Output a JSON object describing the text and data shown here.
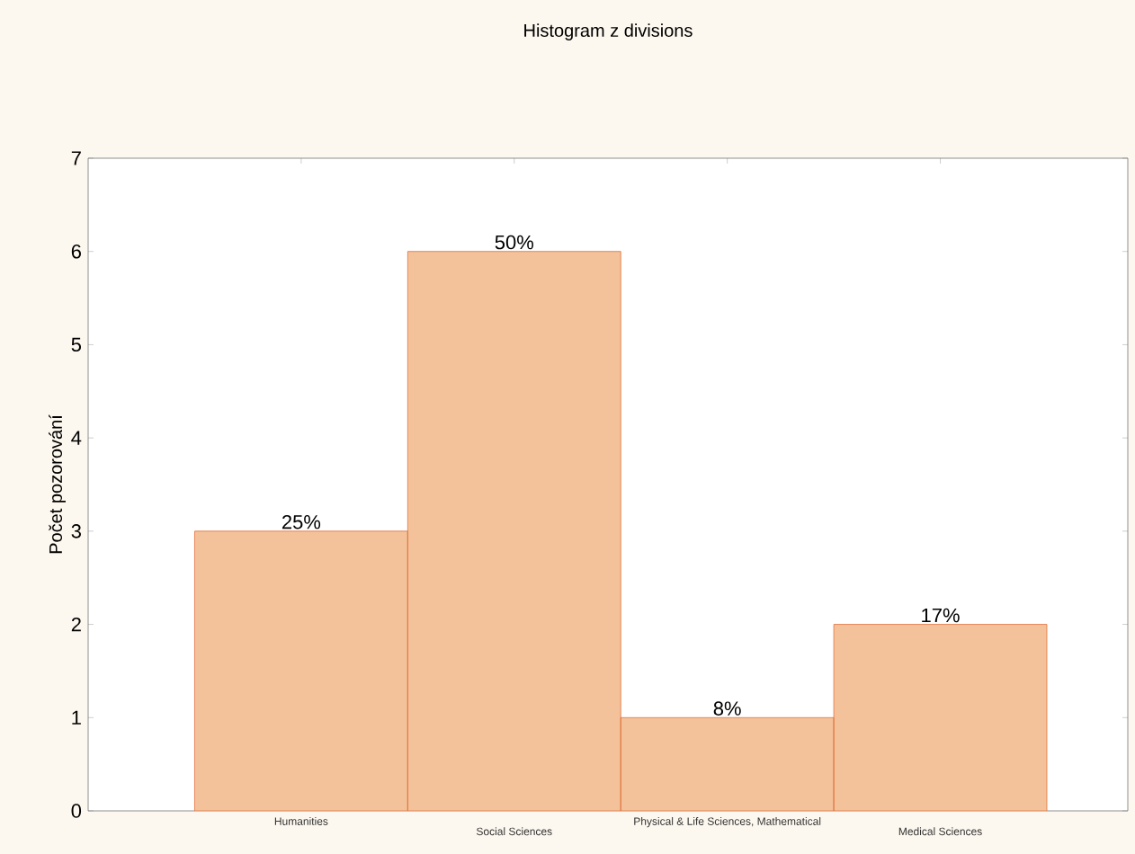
{
  "chart_data": {
    "type": "bar",
    "title": "Histogram z divisions",
    "ylabel": "Počet pozorování",
    "categories": [
      "Humanities",
      "Social Sciences",
      "Physical & Life Sciences, Mathematical",
      "Medical Sciences"
    ],
    "values": [
      3,
      6,
      1,
      2
    ],
    "annotations": [
      {
        "text": "25%",
        "x": "Humanities",
        "y": 3
      },
      {
        "text": "50%",
        "x": "Social Sciences",
        "y": 6
      },
      {
        "text": "8%",
        "x": "Physical & Life Sciences, Mathematical",
        "y": 1
      },
      {
        "text": "17%",
        "x": "Medical Sciences",
        "y": 2
      }
    ],
    "color": "#f4c29a",
    "ylim": [
      0,
      7
    ],
    "yticks": [
      0,
      1,
      2,
      3,
      4,
      5,
      6,
      7
    ],
    "grid": false
  }
}
